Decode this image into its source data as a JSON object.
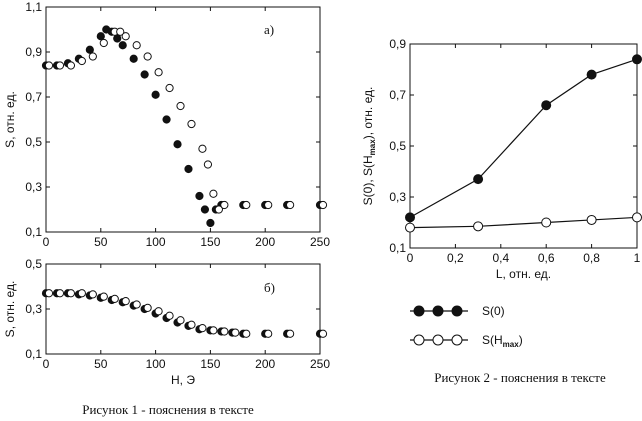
{
  "chart_data": [
    {
      "id": "fig1a",
      "type": "scatter",
      "panel_label": "а)",
      "xlabel": "",
      "ylabel": "S, отн. ед.",
      "xlim": [
        0,
        250
      ],
      "ylim": [
        0.1,
        1.1
      ],
      "x_ticks": [
        "0",
        "50",
        "100",
        "150",
        "200",
        "250"
      ],
      "y_ticks": [
        "0,1",
        "0,3",
        "0,5",
        "0,7",
        "0,9",
        "1,1"
      ],
      "series": [
        {
          "marker": "filled",
          "x": [
            0,
            10,
            20,
            30,
            40,
            50,
            55,
            60,
            65,
            70,
            80,
            90,
            100,
            110,
            120,
            130,
            140,
            145,
            150,
            155,
            160,
            180,
            200,
            220,
            250
          ],
          "y": [
            0.84,
            0.84,
            0.85,
            0.87,
            0.91,
            0.97,
            1.0,
            0.99,
            0.96,
            0.93,
            0.87,
            0.8,
            0.71,
            0.6,
            0.49,
            0.38,
            0.26,
            0.2,
            0.14,
            0.2,
            0.22,
            0.22,
            0.22,
            0.22,
            0.22
          ]
        },
        {
          "marker": "open",
          "x": [
            0,
            10,
            20,
            30,
            40,
            50,
            60,
            65,
            70,
            80,
            90,
            100,
            110,
            120,
            130,
            140,
            145,
            150,
            155,
            160,
            180,
            200,
            220,
            250
          ],
          "y": [
            0.84,
            0.84,
            0.84,
            0.86,
            0.88,
            0.94,
            0.99,
            0.99,
            0.97,
            0.93,
            0.88,
            0.81,
            0.74,
            0.66,
            0.58,
            0.47,
            0.4,
            0.27,
            0.2,
            0.22,
            0.22,
            0.22,
            0.22,
            0.22
          ]
        }
      ]
    },
    {
      "id": "fig1b",
      "type": "scatter",
      "panel_label": "б)",
      "xlabel": "H, Э",
      "ylabel": "S, отн. ед.",
      "xlim": [
        0,
        250
      ],
      "ylim": [
        0.1,
        0.5
      ],
      "x_ticks": [
        "0",
        "50",
        "100",
        "150",
        "200",
        "250"
      ],
      "y_ticks": [
        "0,1",
        "0,3",
        "0,5"
      ],
      "series": [
        {
          "marker": "filled",
          "x": [
            0,
            10,
            20,
            30,
            40,
            50,
            60,
            70,
            80,
            90,
            100,
            110,
            120,
            130,
            140,
            150,
            160,
            170,
            180,
            200,
            220,
            250
          ],
          "y": [
            0.37,
            0.37,
            0.37,
            0.365,
            0.36,
            0.35,
            0.34,
            0.33,
            0.315,
            0.3,
            0.28,
            0.26,
            0.24,
            0.225,
            0.21,
            0.205,
            0.2,
            0.195,
            0.19,
            0.19,
            0.19,
            0.19
          ]
        },
        {
          "marker": "open",
          "x": [
            0,
            10,
            20,
            30,
            40,
            50,
            60,
            70,
            80,
            90,
            100,
            110,
            120,
            130,
            140,
            150,
            160,
            170,
            180,
            200,
            220,
            250
          ],
          "y": [
            0.37,
            0.37,
            0.37,
            0.37,
            0.365,
            0.355,
            0.345,
            0.335,
            0.32,
            0.305,
            0.29,
            0.27,
            0.25,
            0.23,
            0.215,
            0.205,
            0.2,
            0.195,
            0.19,
            0.19,
            0.19,
            0.19
          ]
        }
      ]
    },
    {
      "id": "fig2",
      "type": "line",
      "xlabel": "L, отн. ед.",
      "ylabel_main": "S(0), S(H",
      "ylabel_sub": "max",
      "ylabel_tail": "), отн. ед.",
      "xlim": [
        0,
        1
      ],
      "ylim": [
        0.1,
        0.9
      ],
      "x_ticks": [
        "0",
        "0,2",
        "0,4",
        "0,6",
        "0,8",
        "1"
      ],
      "y_ticks": [
        "0,1",
        "0,3",
        "0,5",
        "0,7",
        "0,9"
      ],
      "series": [
        {
          "name": "S(0)",
          "marker": "filled",
          "x": [
            0,
            0.3,
            0.6,
            0.8,
            1.0
          ],
          "y": [
            0.22,
            0.37,
            0.66,
            0.78,
            0.84
          ]
        },
        {
          "name": "S(H",
          "name_sub": "max",
          "name_tail": ")",
          "marker": "open",
          "x": [
            0,
            0.3,
            0.6,
            0.8,
            1.0
          ],
          "y": [
            0.18,
            0.185,
            0.2,
            0.21,
            0.22
          ]
        }
      ]
    }
  ],
  "captions": {
    "fig1": "Рисунок 1 - пояснения в тексте",
    "fig2": "Рисунок 2 - пояснения в тексте"
  }
}
